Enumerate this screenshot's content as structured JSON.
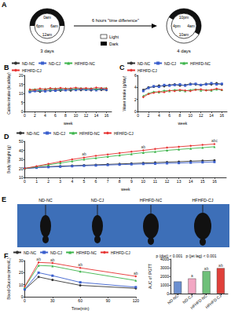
{
  "diagram": {
    "title": "A",
    "clocks": [
      {
        "labels": [
          "0am",
          "6am",
          "12am",
          "6pm"
        ],
        "caption": "3 days"
      },
      {
        "labels": [
          "10pm",
          "4am",
          "10am",
          "4pm"
        ],
        "caption": "4 days"
      }
    ],
    "arrow_label": "6 hours \"time difference\"",
    "key": [
      "Light",
      "Dark"
    ]
  },
  "chart_data": [
    {
      "type": "line",
      "title": "B",
      "xlabel": "week",
      "ylabel": "Calorie intake (kcal/day)",
      "x": [
        1,
        2,
        3,
        4,
        5,
        6,
        7,
        8,
        9,
        10,
        11,
        12,
        13,
        14,
        15,
        16
      ],
      "xlim": [
        0,
        17
      ],
      "xticks": [
        0,
        2,
        4,
        6,
        8,
        10,
        12,
        14,
        16
      ],
      "ylim": [
        0,
        20
      ],
      "yticks": [
        0,
        5,
        10,
        15,
        20
      ],
      "grid": false,
      "legend": "upper left",
      "series": [
        {
          "name": "ND-NC",
          "color": "#333333",
          "marker": "circle",
          "values": [
            11.2,
            11.5,
            11.0,
            11.8,
            11.4,
            11.9,
            11.6,
            12.0,
            11.7,
            12.2,
            11.9,
            12.1,
            11.8,
            12.3,
            12.0,
            11.9
          ]
        },
        {
          "name": "ND-CJ",
          "color": "#3a5fcd",
          "marker": "rect",
          "values": [
            10.8,
            11.3,
            11.6,
            11.2,
            11.7,
            11.5,
            12.1,
            11.8,
            12.3,
            11.9,
            12.4,
            12.0,
            12.2,
            11.8,
            12.5,
            12.1
          ]
        },
        {
          "name": "HFHFD-NC",
          "color": "#3cb44b",
          "marker": "triangle",
          "values": [
            11.9,
            12.4,
            12.0,
            12.6,
            12.2,
            12.8,
            12.3,
            12.9,
            12.5,
            12.7,
            13.0,
            12.6,
            12.9,
            12.4,
            12.8,
            13.1
          ]
        },
        {
          "name": "HFHFD-CJ",
          "color": "#e6302f",
          "marker": "diamond",
          "values": [
            12.2,
            12.0,
            12.7,
            12.3,
            12.9,
            12.5,
            13.1,
            12.6,
            12.8,
            13.2,
            12.7,
            13.0,
            12.6,
            13.3,
            12.9,
            12.7
          ]
        }
      ]
    },
    {
      "type": "line",
      "title": "C",
      "xlabel": "week",
      "ylabel": "Water intake (g/day)",
      "x": [
        1,
        2,
        3,
        4,
        5,
        6,
        7,
        8,
        9,
        10,
        11,
        12,
        13,
        14,
        15,
        16
      ],
      "xlim": [
        0,
        17
      ],
      "xticks": [
        0,
        2,
        4,
        6,
        8,
        10,
        12,
        14,
        16
      ],
      "ylim": [
        0,
        6
      ],
      "yticks": [
        0,
        2,
        4,
        6
      ],
      "grid": false,
      "legend": "upper left",
      "series": [
        {
          "name": "ND-NC",
          "color": "#333333",
          "marker": "circle",
          "values": [
            3.6,
            4.0,
            4.1,
            4.3,
            4.2,
            4.4,
            4.5,
            4.3,
            4.4,
            4.6,
            4.5,
            4.4,
            4.6,
            4.5,
            4.7,
            4.5
          ]
        },
        {
          "name": "ND-CJ",
          "color": "#3a5fcd",
          "marker": "rect",
          "values": [
            3.4,
            3.9,
            4.2,
            4.1,
            4.4,
            4.3,
            4.4,
            4.5,
            4.3,
            4.5,
            4.6,
            4.4,
            4.5,
            4.7,
            4.5,
            4.6
          ]
        },
        {
          "name": "HFHFD-NC",
          "color": "#3cb44b",
          "marker": "triangle",
          "values": [
            2.6,
            3.0,
            3.3,
            3.2,
            3.5,
            3.4,
            3.6,
            3.5,
            3.4,
            3.6,
            3.7,
            3.5,
            3.6,
            3.5,
            3.7,
            3.6
          ]
        },
        {
          "name": "HFHFD-CJ",
          "color": "#e6302f",
          "marker": "diamond",
          "values": [
            2.4,
            2.9,
            3.1,
            3.3,
            3.2,
            3.5,
            3.4,
            3.6,
            3.5,
            3.4,
            3.6,
            3.7,
            3.5,
            3.6,
            3.8,
            3.6
          ]
        }
      ]
    },
    {
      "type": "line",
      "title": "D",
      "xlabel": "week",
      "ylabel": "Body Weight (g)",
      "x": [
        0,
        1,
        2,
        3,
        4,
        5,
        6,
        7,
        8,
        9,
        10,
        11,
        12,
        13,
        14,
        15,
        16
      ],
      "xlim": [
        0,
        17
      ],
      "xticks": [
        0,
        1,
        2,
        3,
        4,
        5,
        6,
        7,
        8,
        9,
        10,
        11,
        12,
        13,
        14,
        15,
        16
      ],
      "ylim": [
        10,
        50
      ],
      "yticks": [
        10,
        20,
        30,
        40,
        50
      ],
      "grid": false,
      "legend": "upper left",
      "series": [
        {
          "name": "ND-NC",
          "color": "#333333",
          "marker": "circle",
          "values": [
            20,
            21,
            22,
            22.5,
            23,
            23.5,
            24,
            24.5,
            25,
            25.5,
            26,
            26.5,
            27,
            27.5,
            28,
            28.5,
            29
          ]
        },
        {
          "name": "ND-CJ",
          "color": "#3a5fcd",
          "marker": "rect",
          "values": [
            20,
            20.8,
            21.5,
            22,
            22.5,
            23,
            23.3,
            23.8,
            24.2,
            24.6,
            25,
            25.3,
            25.7,
            26,
            26.4,
            26.8,
            27.2
          ]
        },
        {
          "name": "HFHFD-NC",
          "color": "#3cb44b",
          "marker": "triangle",
          "values": [
            20,
            22,
            24,
            26,
            28,
            30,
            31.5,
            33,
            34.5,
            36,
            37.5,
            38.5,
            40,
            41,
            42,
            43,
            44
          ]
        },
        {
          "name": "HFHFD-CJ",
          "color": "#e6302f",
          "marker": "diamond",
          "values": [
            20,
            22.5,
            25,
            27.5,
            30,
            32,
            34,
            35.5,
            37,
            38.5,
            40,
            41.5,
            43,
            44,
            45,
            46,
            47
          ]
        }
      ],
      "annotations": [
        {
          "x": 5,
          "y": 33,
          "text": "ab"
        },
        {
          "x": 10,
          "y": 41,
          "text": "ab"
        },
        {
          "x": 16,
          "y": 48,
          "text": "abc"
        }
      ]
    },
    {
      "type": "line",
      "title": "F",
      "xlabel": "Time(min)",
      "ylabel": "Blood Glucose (mmol/L)",
      "x": [
        0,
        15,
        30,
        60,
        120
      ],
      "xlim": [
        0,
        120
      ],
      "xticks": [
        0,
        30,
        60,
        90,
        120
      ],
      "ylim": [
        0,
        30
      ],
      "yticks": [
        0,
        10,
        20,
        30
      ],
      "grid": false,
      "legend": "upper left",
      "series": [
        {
          "name": "ND-NC",
          "color": "#333333",
          "marker": "circle",
          "values": [
            6.0,
            16.5,
            14.0,
            9.5,
            7.0
          ]
        },
        {
          "name": "ND-CJ",
          "color": "#3a5fcd",
          "marker": "rect",
          "values": [
            6.2,
            20.0,
            17.5,
            12.0,
            8.0
          ]
        },
        {
          "name": "HFHFD-NC",
          "color": "#3cb44b",
          "marker": "triangle",
          "values": [
            7.8,
            26.0,
            25.5,
            21.0,
            13.5
          ]
        },
        {
          "name": "HFHFD-CJ",
          "color": "#e6302f",
          "marker": "diamond",
          "values": [
            8.5,
            28.5,
            28.0,
            24.0,
            17.0
          ]
        }
      ],
      "annotations": [
        {
          "x": 15,
          "y": 29,
          "text": "ab"
        },
        {
          "x": 30,
          "y": 28.5,
          "text": "ab"
        },
        {
          "x": 60,
          "y": 24.5,
          "text": "ab"
        },
        {
          "x": 120,
          "y": 17.5,
          "text": "ab"
        }
      ]
    },
    {
      "type": "bar",
      "subtitle": "p (diet) < 0.001   p (jet lag) < 0.001",
      "ylabel": "AUC of IPGTT",
      "categories": [
        "ND-NC",
        "ND-CJ",
        "HFHFD-NC",
        "HFHFD-CJ"
      ],
      "values": [
        1400,
        1750,
        2600,
        2950
      ],
      "colors": [
        "#6a8fd0",
        "#f2a7c3",
        "#6fc07a",
        "#e0403a"
      ],
      "ylim": [
        0,
        4000
      ],
      "yticks": [
        0,
        1000,
        2000,
        3000,
        4000
      ],
      "grid": false,
      "annotations": [
        {
          "x": "ND-CJ",
          "y": 1750,
          "text": "a"
        },
        {
          "x": "HFHFD-NC",
          "y": 2600,
          "text": "ab"
        },
        {
          "x": "HFHFD-CJ",
          "y": 2950,
          "text": "ab"
        }
      ]
    }
  ],
  "photo": {
    "title": "E",
    "labels": [
      "ND-NC",
      "ND-CJ",
      "HFHFD-NC",
      "HFHFD-CJ"
    ]
  }
}
